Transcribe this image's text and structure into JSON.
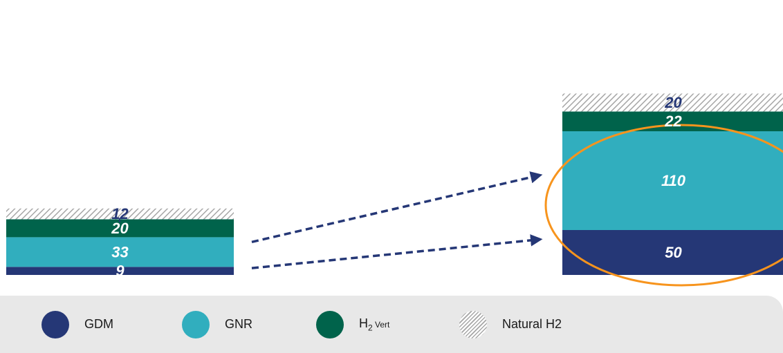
{
  "chart_data": {
    "type": "bar",
    "stacked": true,
    "categories": [
      "",
      ""
    ],
    "series": [
      {
        "name": "GDM",
        "values": [
          9,
          50
        ],
        "color": "#253776"
      },
      {
        "name": "GNR",
        "values": [
          33,
          110
        ],
        "color": "#31aebe"
      },
      {
        "name": "H2 Vert",
        "values": [
          20,
          22
        ],
        "color": "#00634b"
      },
      {
        "name": "Natural H2",
        "values": [
          12,
          20
        ],
        "color": "#a6a6a6",
        "pattern": "hatch"
      }
    ],
    "title": "",
    "xlabel": "",
    "ylabel": "",
    "grid": false,
    "legend_position": "bottom",
    "annotations": [
      {
        "type": "dashed-arrow",
        "from": "bar-1 GNR",
        "to": "bar-2 GNR",
        "color": "#253776"
      },
      {
        "type": "dashed-arrow",
        "from": "bar-1 GDM",
        "to": "bar-2 GDM",
        "color": "#253776"
      },
      {
        "type": "ellipse-highlight",
        "around": "bar-2 GDM and GNR",
        "color": "#f7941d"
      }
    ]
  },
  "legend": [
    {
      "key": "gdm",
      "label": "GDM",
      "color": "#253776"
    },
    {
      "key": "gnr",
      "label": "GNR",
      "color": "#31aebe"
    },
    {
      "key": "h2vert",
      "label_main": "H",
      "label_sub": "2",
      "label_tail": " Vert",
      "color": "#00634b"
    },
    {
      "key": "natural",
      "label": "Natural H2",
      "pattern": "hatch"
    }
  ]
}
